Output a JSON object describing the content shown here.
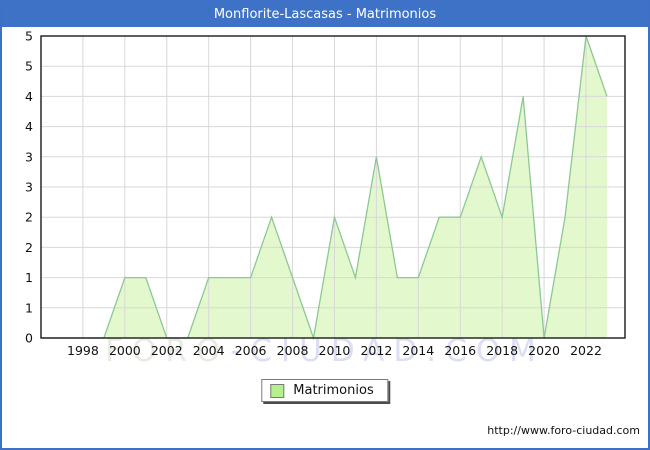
{
  "title_bar": {
    "title": "Monflorite-Lascasas - Matrimonios",
    "bg_color": "#3e72c6",
    "text_color": "#ffffff"
  },
  "chart_data": {
    "type": "area",
    "title": "Monflorite-Lascasas - Matrimonios",
    "series_name": "Matrimonios",
    "x": [
      1996,
      1997,
      1998,
      1999,
      2000,
      2001,
      2002,
      2003,
      2004,
      2005,
      2006,
      2007,
      2008,
      2009,
      2010,
      2011,
      2012,
      2013,
      2014,
      2015,
      2016,
      2017,
      2018,
      2019,
      2020,
      2021,
      2022,
      2023
    ],
    "values": [
      0,
      0,
      0,
      0,
      1,
      1,
      0,
      0,
      1,
      1,
      1,
      2,
      1,
      0,
      2,
      1,
      3,
      1,
      1,
      2,
      2,
      3,
      2,
      4,
      0,
      2,
      5,
      4
    ],
    "xlim": [
      1996,
      2023.86
    ],
    "ylim": [
      0,
      5
    ],
    "x_ticks": [
      1998,
      2000,
      2002,
      2004,
      2006,
      2008,
      2010,
      2012,
      2014,
      2016,
      2018,
      2020,
      2022
    ],
    "x_tick_labels": [
      "1998",
      "2000",
      "2002",
      "2004",
      "2006",
      "2008",
      "2010",
      "2012",
      "2014",
      "2016",
      "2018",
      "2020",
      "2022"
    ],
    "y_tick_step": 0.5,
    "y_tick_labels_top_to_bottom": [
      "5",
      "5",
      "4",
      "4",
      "3",
      "3",
      "2",
      "2",
      "1",
      "1",
      "0"
    ],
    "grid": true,
    "legend_position": "bottom-center",
    "line_color": "#8dc894",
    "fill_color": "#e3f8cd",
    "grid_color": "#d8d8d8",
    "plot_border_color": "#1a1a1a"
  },
  "legend": {
    "label": "Matrimonios",
    "swatch_fill": "#b6ef8e",
    "swatch_border": "#7a7a7a"
  },
  "watermark": {
    "part1": "FORO",
    "part2": "-CIUDAD.COM"
  },
  "footer": {
    "url": "http://www.foro-ciudad.com"
  }
}
